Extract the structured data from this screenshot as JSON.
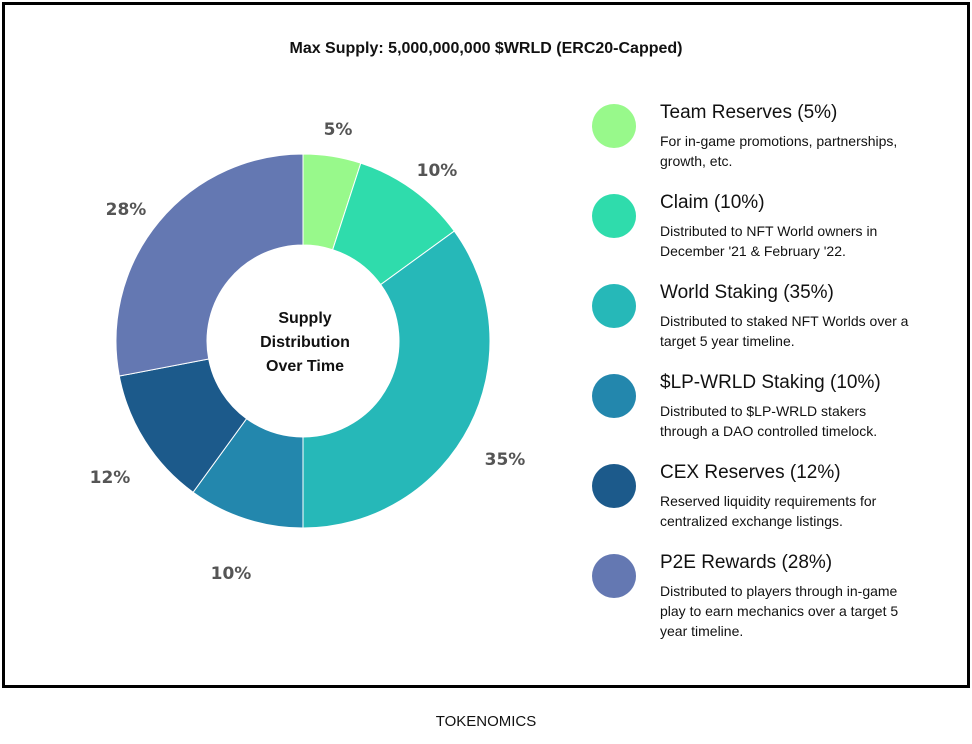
{
  "caption": "TOKENOMICS",
  "chart_data": {
    "type": "pie",
    "title": "Max Supply: 5,000,000,000 $WRLD (ERC20-Capped)",
    "center_label": [
      "Supply",
      "Distribution",
      "Over Time"
    ],
    "slices": [
      {
        "label": "Team Reserves",
        "value": 5,
        "pct_label": "5%",
        "color": "#98f98b"
      },
      {
        "label": "Claim",
        "value": 10,
        "pct_label": "10%",
        "color": "#2fdcac"
      },
      {
        "label": "World Staking",
        "value": 35,
        "pct_label": "35%",
        "color": "#26b8b8"
      },
      {
        "label": "$LP-WRLD Staking",
        "value": 10,
        "pct_label": "10%",
        "color": "#2387ad"
      },
      {
        "label": "CEX Reserves",
        "value": 12,
        "pct_label": "12%",
        "color": "#1c5a8b"
      },
      {
        "label": "P2E Rewards",
        "value": 28,
        "pct_label": "28%",
        "color": "#6478b2"
      }
    ]
  },
  "legend": [
    {
      "title": "Team Reserves (5%)",
      "desc": "For in-game promotions, partnerships, growth, etc.",
      "color": "#98f98b"
    },
    {
      "title": "Claim (10%)",
      "desc": "Distributed to NFT World owners in December '21 & February '22.",
      "color": "#2fdcac"
    },
    {
      "title": "World Staking (35%)",
      "desc": "Distributed to staked NFT Worlds over a target 5 year timeline.",
      "color": "#26b8b8"
    },
    {
      "title": "$LP-WRLD Staking (10%)",
      "desc": "Distributed to $LP-WRLD stakers through a DAO controlled timelock.",
      "color": "#2387ad"
    },
    {
      "title": "CEX Reserves (12%)",
      "desc": "Reserved liquidity requirements for centralized exchange listings.",
      "color": "#1c5a8b"
    },
    {
      "title": "P2E Rewards (28%)",
      "desc": "Distributed to players through in-game play to earn mechanics over a target 5 year timeline.",
      "color": "#6478b2"
    }
  ]
}
